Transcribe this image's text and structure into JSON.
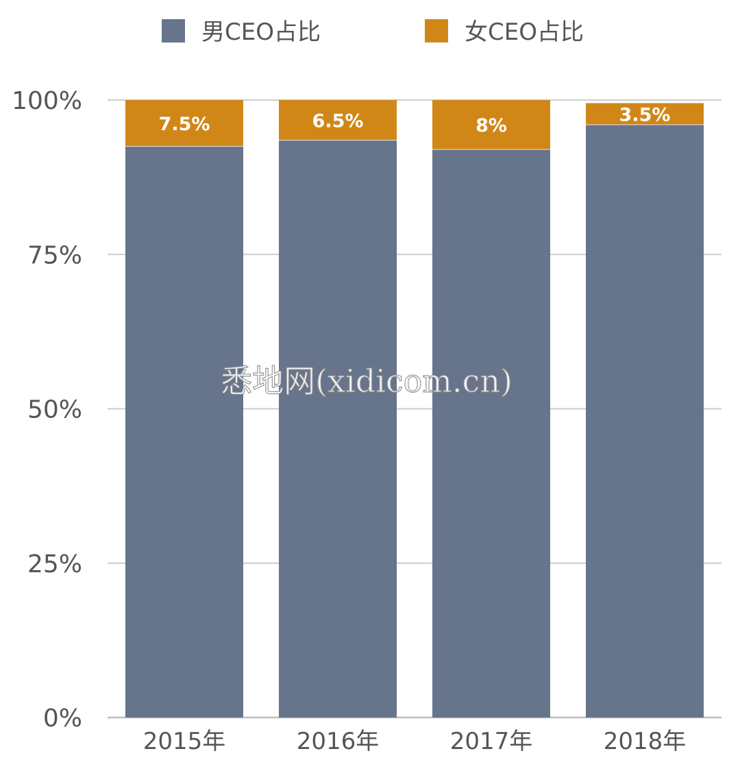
{
  "chart_data": {
    "type": "bar",
    "stacked": true,
    "categories": [
      "2015年",
      "2016年",
      "2017年",
      "2018年"
    ],
    "series": [
      {
        "name": "男CEO占比",
        "color": "#66748C",
        "values": [
          92.5,
          93.5,
          92.0,
          96.0
        ]
      },
      {
        "name": "女CEO占比",
        "color": "#D18718",
        "values": [
          7.5,
          6.5,
          8.0,
          3.5
        ]
      }
    ],
    "data_labels": [
      "7.5%",
      "6.5%",
      "8%",
      "3.5%"
    ],
    "y_ticks": [
      "0%",
      "25%",
      "50%",
      "75%",
      "100%"
    ],
    "ylim": [
      0,
      100
    ],
    "grid": true,
    "legend_position": "top-center"
  },
  "watermark": "悉地网(xidicom.cn)"
}
